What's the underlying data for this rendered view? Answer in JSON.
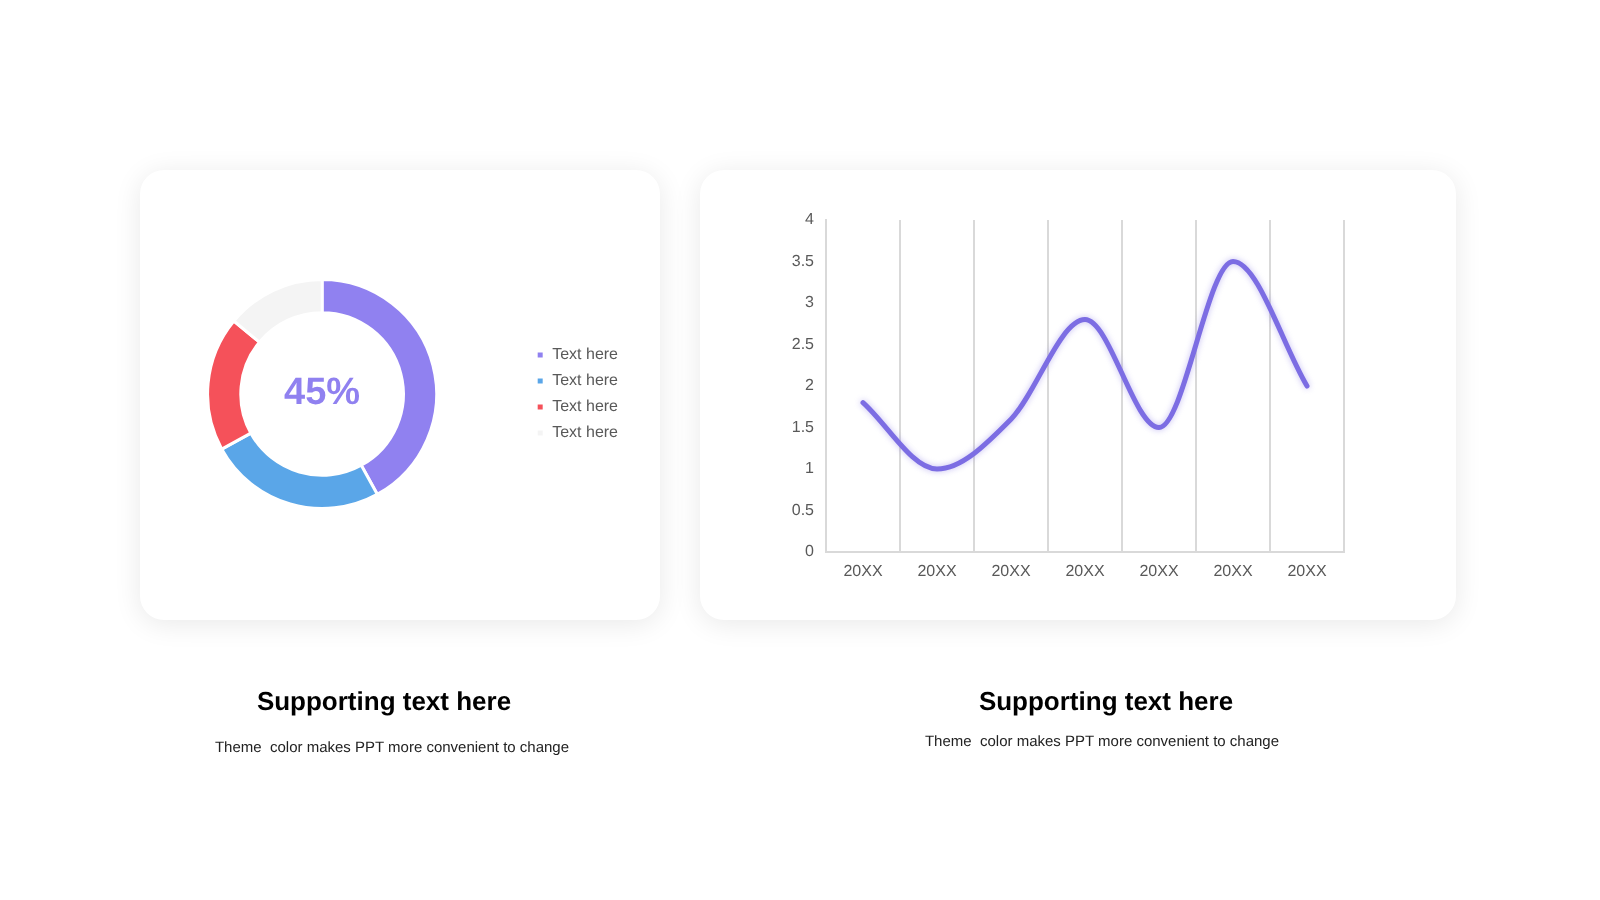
{
  "chart_data": [
    {
      "type": "donut",
      "title": "Supporting text here",
      "subtitle": "Theme  color makes PPT more convenient to change",
      "categories": [
        "Text here",
        "Text here",
        "Text here",
        "Text here"
      ],
      "values": [
        42,
        25,
        19,
        14
      ],
      "colors": [
        "#9081f0",
        "#5aa6e8",
        "#f5515a",
        "#f4f4f4"
      ],
      "legend": "right",
      "annotations": [
        "45%"
      ]
    },
    {
      "type": "line",
      "title": "Supporting text here",
      "subtitle": "Theme  color makes PPT more convenient to change",
      "categories": [
        "20XX",
        "20XX",
        "20XX",
        "20XX",
        "20XX",
        "20XX",
        "20XX"
      ],
      "series": [
        {
          "color": "#7c6de3",
          "values": [
            1.8,
            1.0,
            1.6,
            2.8,
            1.5,
            3.5,
            2.0
          ]
        }
      ],
      "ylim": [
        0,
        4
      ],
      "yticks": [
        0,
        0.5,
        1,
        1.5,
        2,
        2.5,
        3,
        3.5,
        4
      ],
      "grid": "x",
      "marker": "none",
      "line_style": "solid"
    }
  ]
}
